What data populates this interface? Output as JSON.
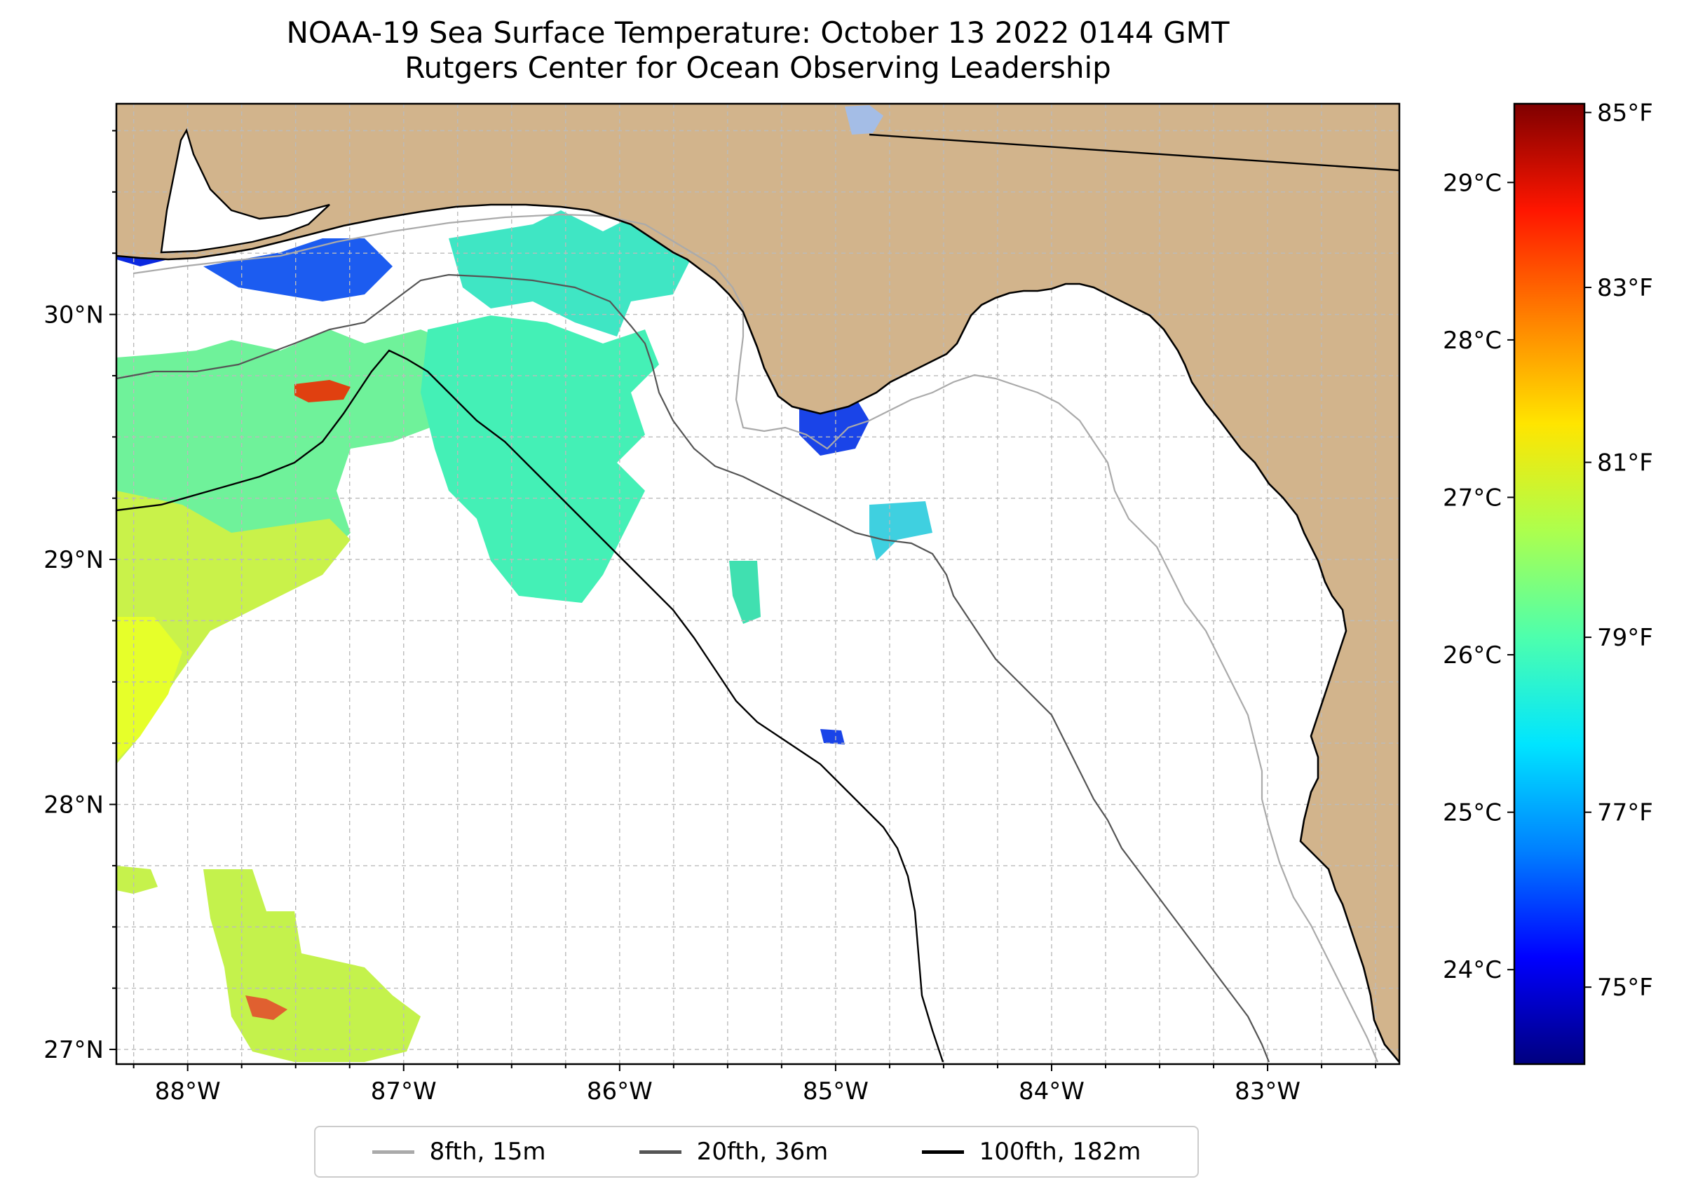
{
  "title": {
    "line1": "NOAA-19 Sea Surface Temperature: October 13 2022 0144 GMT",
    "line2": "Rutgers Center for Ocean Observing Leadership"
  },
  "map": {
    "extent": {
      "lon": [
        -88.33,
        -82.39
      ],
      "lat": [
        26.94,
        30.86
      ]
    },
    "latitude_ticks": [
      {
        "value": 30,
        "label": "30°N"
      },
      {
        "value": 29,
        "label": "29°N"
      },
      {
        "value": 28,
        "label": "28°N"
      },
      {
        "value": 27,
        "label": "27°N"
      }
    ],
    "longitude_ticks": [
      {
        "value": -88,
        "label": "88°W"
      },
      {
        "value": -87,
        "label": "87°W"
      },
      {
        "value": -86,
        "label": "86°W"
      },
      {
        "value": -85,
        "label": "85°W"
      },
      {
        "value": -84,
        "label": "84°W"
      },
      {
        "value": -83,
        "label": "83°W"
      }
    ],
    "colors": {
      "land": "#d2b48c",
      "ocean": "#ffffff",
      "grid": "#bbbbbb",
      "coast": "#000000"
    }
  },
  "colorbar": {
    "range_c": [
      23.4,
      29.5
    ],
    "celsius_ticks": [
      {
        "value": 29,
        "label": "29°C"
      },
      {
        "value": 28,
        "label": "28°C"
      },
      {
        "value": 27,
        "label": "27°C"
      },
      {
        "value": 26,
        "label": "26°C"
      },
      {
        "value": 25,
        "label": "25°C"
      },
      {
        "value": 24,
        "label": "24°C"
      }
    ],
    "fahrenheit_ticks": [
      {
        "value": 85,
        "label": "85°F"
      },
      {
        "value": 83,
        "label": "83°F"
      },
      {
        "value": 81,
        "label": "81°F"
      },
      {
        "value": 79,
        "label": "79°F"
      },
      {
        "value": 77,
        "label": "77°F"
      },
      {
        "value": 75,
        "label": "75°F"
      }
    ],
    "colormap": [
      "#00007f",
      "#0000ff",
      "#0080ff",
      "#00e5ff",
      "#4dffad",
      "#adff4d",
      "#ffe500",
      "#ff8000",
      "#ff1600",
      "#7f0000"
    ]
  },
  "legend": {
    "items": [
      {
        "label": "8fth, 15m",
        "color": "#aaaaaa"
      },
      {
        "label": "20fth, 36m",
        "color": "#555555"
      },
      {
        "label": "100fth, 182m",
        "color": "#000000"
      }
    ]
  }
}
